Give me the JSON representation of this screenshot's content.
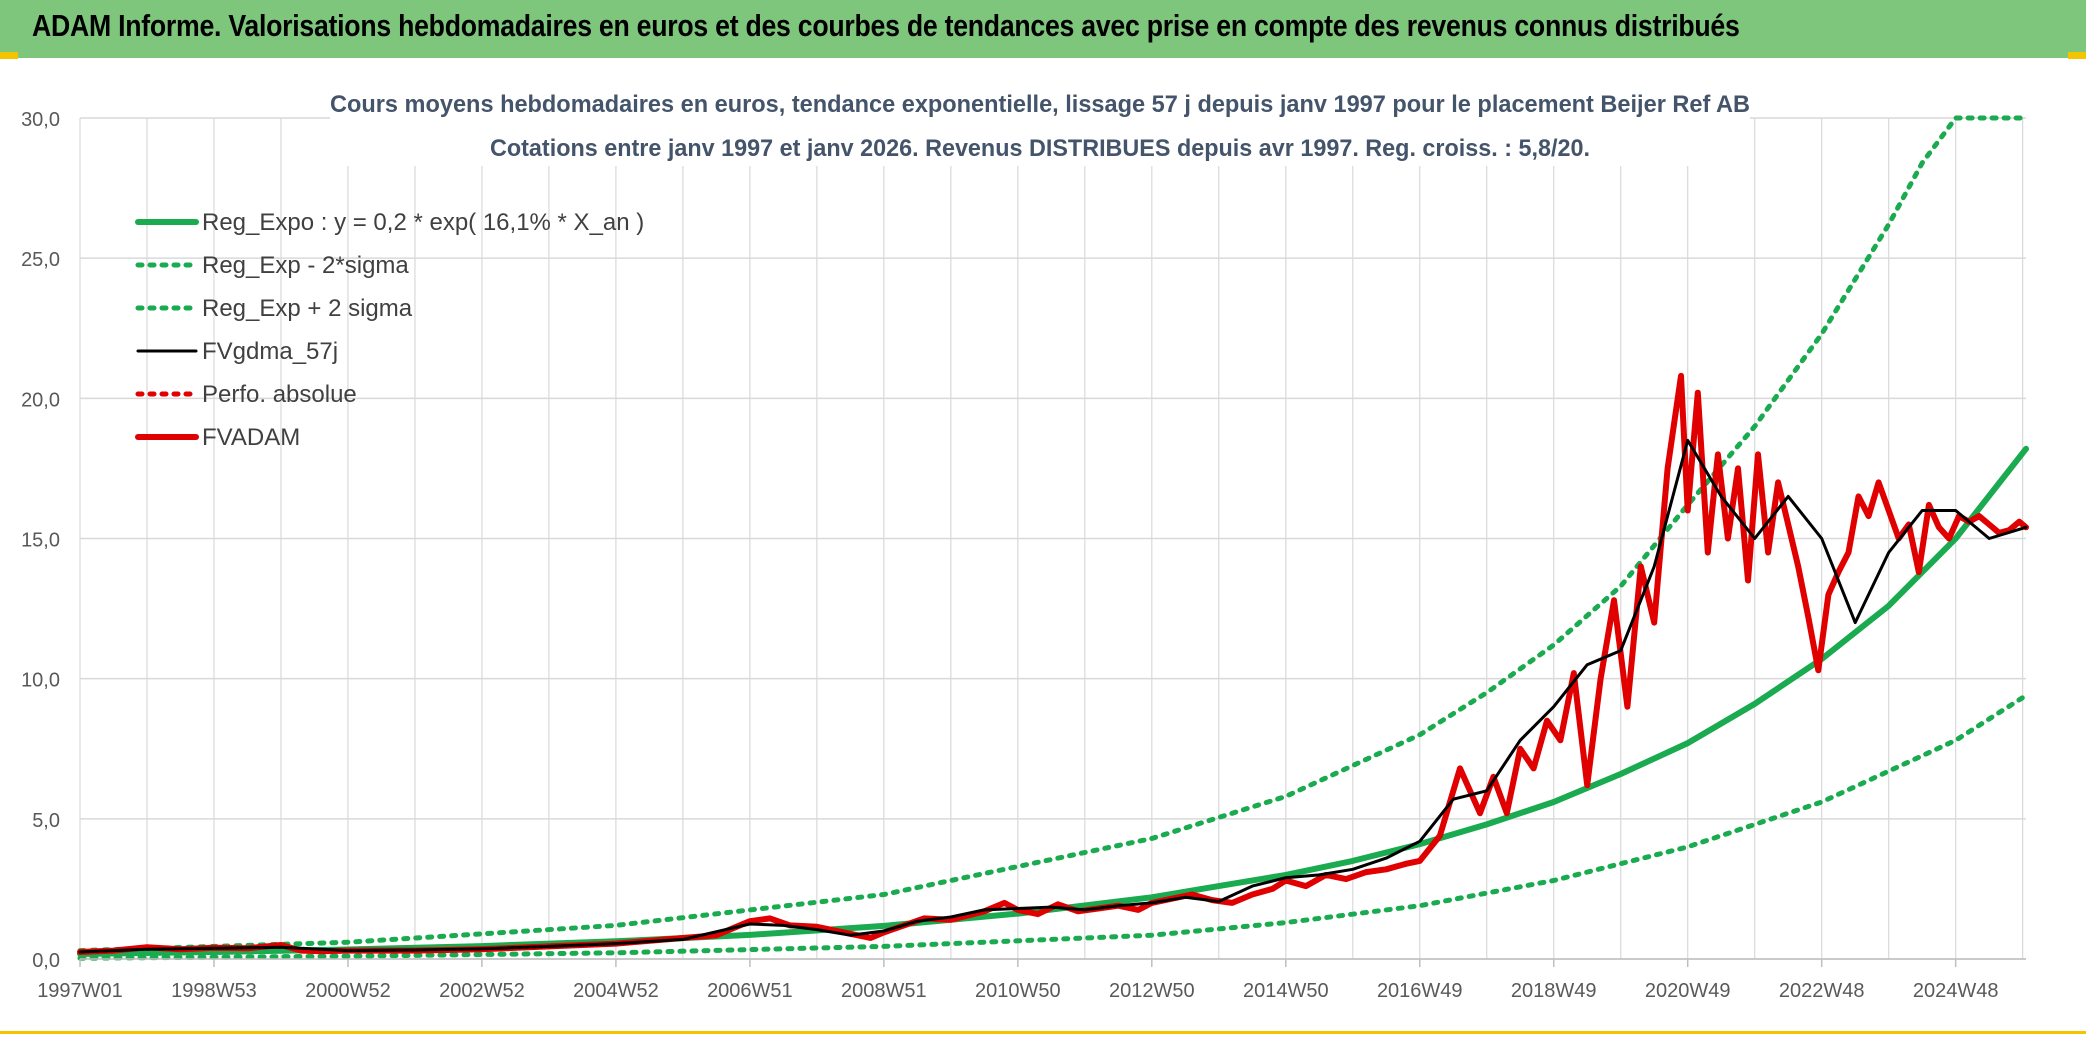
{
  "header": {
    "title": "ADAM Informe. Valorisations hebdomadaires en euros et des courbes de tendances avec prise en compte des revenus connus distribués"
  },
  "chart_data": {
    "type": "line",
    "title": "Cours moyens hebdomadaires en euros, tendance exponentielle, lissage 57 j depuis janv 1997 pour le placement Beijer Ref AB",
    "subtitle": "Cotations entre janv 1997 et janv 2026. Revenus DISTRIBUES depuis avr 1997. Reg. croiss. : 5,8/20.",
    "xlabel": "",
    "ylabel": "",
    "x_range": [
      1997.0,
      2026.05
    ],
    "ylim": [
      0,
      30
    ],
    "yticks": [
      "0,0",
      "5,0",
      "10,0",
      "15,0",
      "20,0",
      "25,0",
      "30,0"
    ],
    "ytick_values": [
      0,
      5,
      10,
      15,
      20,
      25,
      30
    ],
    "xticks": [
      "1997W01",
      "1998W53",
      "2000W52",
      "2002W52",
      "2004W52",
      "2006W51",
      "2008W51",
      "2010W50",
      "2012W50",
      "2014W50",
      "2016W49",
      "2018W49",
      "2020W49",
      "2022W48",
      "2024W48"
    ],
    "xtick_values": [
      1997.0,
      1999.0,
      2001.0,
      2003.0,
      2005.0,
      2007.0,
      2009.0,
      2011.0,
      2013.0,
      2015.0,
      2017.0,
      2019.0,
      2021.0,
      2023.0,
      2025.0
    ],
    "grid": true,
    "legend_position": "top-left",
    "series": [
      {
        "name": "Reg_Expo : y = 0,2 * exp( 16,1% *  X_an )",
        "style": "solid-thick",
        "color": "#1aaa4f",
        "x": [
          1997.0,
          1999.0,
          2001.0,
          2003.0,
          2005.0,
          2007.0,
          2009.0,
          2011.0,
          2013.0,
          2014.0,
          2015.0,
          2016.0,
          2017.0,
          2018.0,
          2019.0,
          2020.0,
          2021.0,
          2022.0,
          2023.0,
          2024.0,
          2025.0,
          2026.05
        ],
        "values": [
          0.18,
          0.25,
          0.34,
          0.46,
          0.63,
          0.86,
          1.18,
          1.62,
          2.2,
          2.6,
          3.0,
          3.5,
          4.1,
          4.8,
          5.6,
          6.6,
          7.7,
          9.1,
          10.7,
          12.6,
          15.0,
          18.2
        ]
      },
      {
        "name": "Reg_Exp - 2*sigma",
        "style": "dotted",
        "color": "#1aaa4f",
        "x": [
          1997.0,
          2001.0,
          2005.0,
          2009.0,
          2013.0,
          2015.0,
          2017.0,
          2019.0,
          2021.0,
          2023.0,
          2025.0,
          2026.05
        ],
        "values": [
          0.03,
          0.1,
          0.22,
          0.45,
          0.85,
          1.3,
          1.9,
          2.8,
          4.0,
          5.6,
          7.8,
          9.4
        ]
      },
      {
        "name": "Reg_Exp + 2 sigma",
        "style": "dotted",
        "color": "#1aaa4f",
        "x": [
          1997.0,
          2001.0,
          2005.0,
          2009.0,
          2013.0,
          2015.0,
          2017.0,
          2018.0,
          2019.0,
          2020.0,
          2021.0,
          2022.0,
          2023.0,
          2024.0,
          2024.5,
          2025.0,
          2026.05
        ],
        "values": [
          0.3,
          0.6,
          1.2,
          2.3,
          4.3,
          5.8,
          8.0,
          9.5,
          11.2,
          13.3,
          16.2,
          19.0,
          22.3,
          26.2,
          28.4,
          30.0,
          30.0
        ]
      },
      {
        "name": "FVgdma_57j",
        "style": "solid",
        "color": "#000000",
        "x": [
          1997.0,
          1998.0,
          1999.0,
          2000.0,
          2001.0,
          2002.0,
          2003.0,
          2004.0,
          2005.0,
          2006.0,
          2007.0,
          2007.5,
          2008.0,
          2008.5,
          2009.0,
          2009.5,
          2010.0,
          2010.5,
          2011.0,
          2011.5,
          2012.0,
          2012.5,
          2013.0,
          2013.5,
          2014.0,
          2014.5,
          2015.0,
          2015.5,
          2016.0,
          2016.5,
          2017.0,
          2017.5,
          2018.0,
          2018.5,
          2019.0,
          2019.5,
          2020.0,
          2020.5,
          2021.0,
          2021.5,
          2022.0,
          2022.5,
          2023.0,
          2023.5,
          2024.0,
          2024.5,
          2025.0,
          2025.5,
          2026.05
        ],
        "values": [
          0.25,
          0.35,
          0.38,
          0.42,
          0.3,
          0.32,
          0.36,
          0.45,
          0.55,
          0.7,
          1.25,
          1.2,
          1.05,
          0.85,
          1.0,
          1.35,
          1.5,
          1.75,
          1.8,
          1.85,
          1.75,
          1.9,
          2.0,
          2.2,
          2.05,
          2.6,
          2.9,
          3.0,
          3.2,
          3.6,
          4.2,
          5.7,
          6.0,
          7.8,
          9.0,
          10.5,
          11.0,
          14.0,
          18.5,
          16.5,
          15.0,
          16.5,
          15.0,
          12.0,
          14.5,
          16.0,
          16.0,
          15.0,
          15.4
        ]
      },
      {
        "name": "Perfo. absolue",
        "style": "dotted",
        "color": "#e00000",
        "x": [],
        "values": []
      },
      {
        "name": "FVADAM",
        "style": "solid-thick",
        "color": "#e00000",
        "x": [
          1997.0,
          1997.5,
          1998.0,
          1998.5,
          1999.0,
          1999.5,
          2000.0,
          2000.3,
          2000.6,
          2001.0,
          2002.0,
          2003.0,
          2004.0,
          2005.0,
          2006.0,
          2006.5,
          2007.0,
          2007.3,
          2007.6,
          2008.0,
          2008.5,
          2008.8,
          2009.0,
          2009.3,
          2009.6,
          2010.0,
          2010.5,
          2010.8,
          2011.0,
          2011.3,
          2011.6,
          2011.9,
          2012.2,
          2012.5,
          2012.8,
          2013.0,
          2013.3,
          2013.6,
          2013.9,
          2014.2,
          2014.5,
          2014.8,
          2015.0,
          2015.3,
          2015.6,
          2015.9,
          2016.2,
          2016.5,
          2016.8,
          2017.0,
          2017.3,
          2017.6,
          2017.9,
          2018.1,
          2018.3,
          2018.5,
          2018.7,
          2018.9,
          2019.1,
          2019.3,
          2019.5,
          2019.7,
          2019.9,
          2020.1,
          2020.3,
          2020.5,
          2020.7,
          2020.9,
          2021.0,
          2021.15,
          2021.3,
          2021.45,
          2021.6,
          2021.75,
          2021.9,
          2022.05,
          2022.2,
          2022.35,
          2022.5,
          2022.65,
          2022.8,
          2022.95,
          2023.1,
          2023.25,
          2023.4,
          2023.55,
          2023.7,
          2023.85,
          2024.0,
          2024.15,
          2024.3,
          2024.45,
          2024.6,
          2024.75,
          2024.9,
          2025.05,
          2025.2,
          2025.35,
          2025.5,
          2025.65,
          2025.8,
          2025.95,
          2026.05
        ],
        "values": [
          0.25,
          0.3,
          0.42,
          0.35,
          0.4,
          0.38,
          0.5,
          0.3,
          0.28,
          0.3,
          0.3,
          0.35,
          0.45,
          0.55,
          0.75,
          0.85,
          1.35,
          1.45,
          1.2,
          1.15,
          0.9,
          0.75,
          0.95,
          1.2,
          1.45,
          1.4,
          1.7,
          2.0,
          1.75,
          1.6,
          1.95,
          1.7,
          1.8,
          1.9,
          1.75,
          2.0,
          2.15,
          2.3,
          2.1,
          2.0,
          2.3,
          2.5,
          2.8,
          2.6,
          3.0,
          2.85,
          3.1,
          3.2,
          3.4,
          3.5,
          4.4,
          6.8,
          5.2,
          6.5,
          5.2,
          7.5,
          6.8,
          8.5,
          7.8,
          10.2,
          6.2,
          10.0,
          12.8,
          9.0,
          14.0,
          12.0,
          17.5,
          20.8,
          16.0,
          20.2,
          14.5,
          18.0,
          15.0,
          17.5,
          13.5,
          18.0,
          14.5,
          17.0,
          15.5,
          14.0,
          12.2,
          10.3,
          13.0,
          13.8,
          14.5,
          16.5,
          15.8,
          17.0,
          16.0,
          15.0,
          15.5,
          13.8,
          16.2,
          15.4,
          15.0,
          15.8,
          15.6,
          15.8,
          15.5,
          15.2,
          15.3,
          15.6,
          15.4
        ]
      }
    ]
  }
}
